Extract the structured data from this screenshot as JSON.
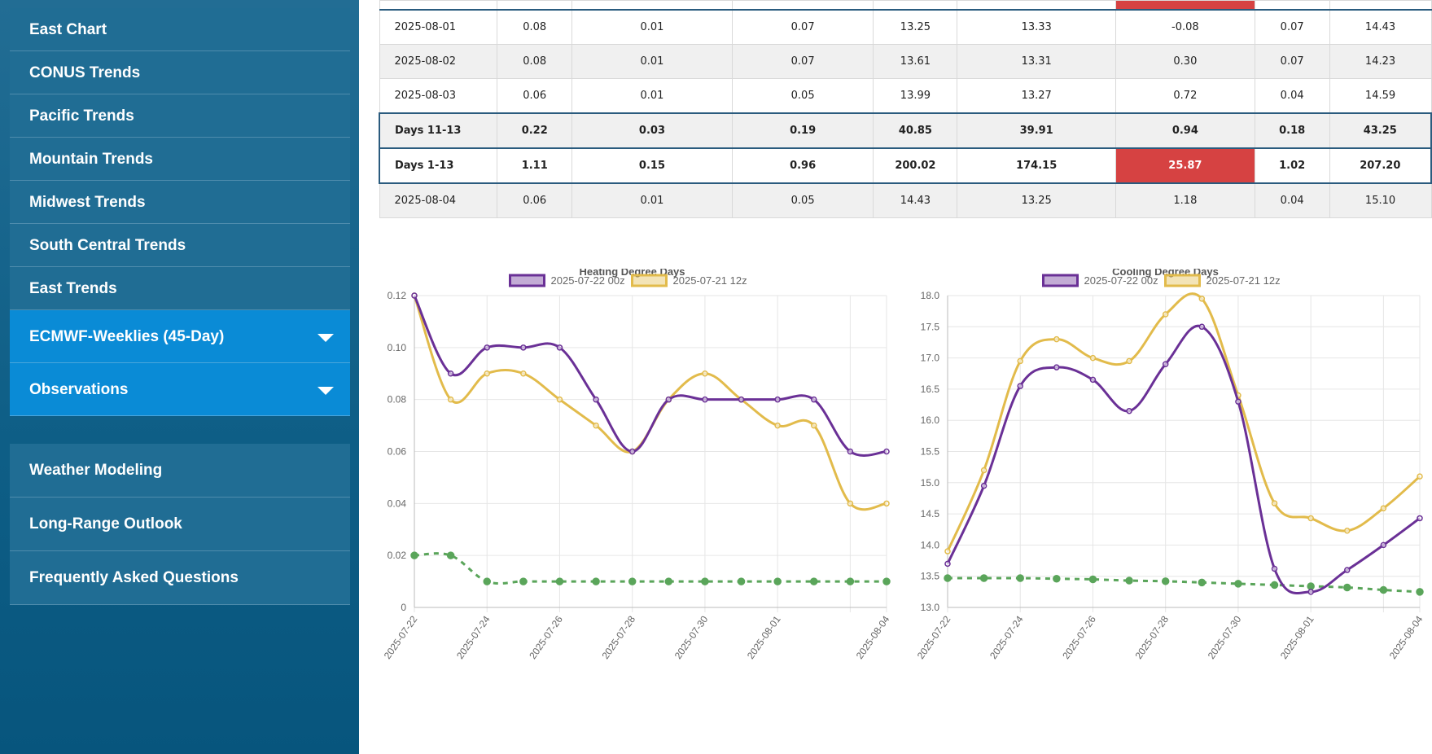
{
  "sidebar": {
    "items_top": [
      "East Chart",
      "CONUS Trends",
      "Pacific Trends",
      "Mountain Trends",
      "Midwest Trends",
      "South Central Trends",
      "East Trends"
    ],
    "items_active": [
      "ECMWF-Weeklies (45-Day)",
      "Observations"
    ],
    "items_bottom": [
      "Weather Modeling",
      "Long-Range Outlook",
      "Frequently Asked Questions"
    ]
  },
  "table": {
    "rows": [
      {
        "cells": [
          "2025-08-01",
          "0.08",
          "0.01",
          "0.07",
          "13.25",
          "13.33",
          "-0.08",
          "0.07",
          "14.43"
        ]
      },
      {
        "cells": [
          "2025-08-02",
          "0.08",
          "0.01",
          "0.07",
          "13.61",
          "13.31",
          "0.30",
          "0.07",
          "14.23"
        ]
      },
      {
        "cells": [
          "2025-08-03",
          "0.06",
          "0.01",
          "0.05",
          "13.99",
          "13.27",
          "0.72",
          "0.04",
          "14.59"
        ]
      },
      {
        "cells": [
          "Days 11-13",
          "0.22",
          "0.03",
          "0.19",
          "40.85",
          "39.91",
          "0.94",
          "0.18",
          "43.25"
        ]
      },
      {
        "cells": [
          "Days 1-13",
          "1.11",
          "0.15",
          "0.96",
          "200.02",
          "174.15",
          "25.87",
          "1.02",
          "207.20"
        ]
      },
      {
        "cells": [
          "2025-08-04",
          "0.06",
          "0.01",
          "0.05",
          "14.43",
          "13.25",
          "1.18",
          "0.04",
          "15.10"
        ]
      }
    ]
  },
  "colors": {
    "purple": "#6a3096",
    "gold": "#e2bb4b",
    "green": "#5aa55a",
    "red": "#d64242",
    "nav": "#206d94",
    "nav_active": "#0a8bd6"
  },
  "chart_data": [
    {
      "type": "line",
      "title": "Heating Degree Days",
      "x": [
        "2025-07-22",
        "2025-07-23",
        "2025-07-24",
        "2025-07-25",
        "2025-07-26",
        "2025-07-27",
        "2025-07-28",
        "2025-07-29",
        "2025-07-30",
        "2025-07-31",
        "2025-08-01",
        "2025-08-02",
        "2025-08-03",
        "2025-08-04"
      ],
      "x_tick_labels": [
        "2025-07-22",
        "2025-07-24",
        "2025-07-26",
        "2025-07-28",
        "2025-07-30",
        "2025-08-01",
        "2025-08-04"
      ],
      "ylim": [
        0,
        0.12
      ],
      "y_ticks": [
        0,
        0.02,
        0.04,
        0.06,
        0.08,
        0.1,
        0.12
      ],
      "y_tick_labels": [
        "0",
        "0.02",
        "0.04",
        "0.06",
        "0.08",
        "0.10",
        "0.12"
      ],
      "legend": "top",
      "series": [
        {
          "name": "2025-07-22 00z",
          "color": "#6a3096",
          "values": [
            0.12,
            0.09,
            0.1,
            0.1,
            0.1,
            0.08,
            0.06,
            0.08,
            0.08,
            0.08,
            0.08,
            0.08,
            0.06,
            0.06
          ]
        },
        {
          "name": "2025-07-21 12z",
          "color": "#e2bb4b",
          "values": [
            0.12,
            0.08,
            0.09,
            0.09,
            0.08,
            0.07,
            0.06,
            0.08,
            0.09,
            0.08,
            0.07,
            0.07,
            0.04,
            0.04
          ]
        },
        {
          "color": "#5aa55a",
          "dashed": true,
          "values": [
            0.02,
            0.02,
            0.01,
            0.01,
            0.01,
            0.01,
            0.01,
            0.01,
            0.01,
            0.01,
            0.01,
            0.01,
            0.01,
            0.01
          ]
        }
      ]
    },
    {
      "type": "line",
      "title": "Cooling Degree Days",
      "x": [
        "2025-07-22",
        "2025-07-23",
        "2025-07-24",
        "2025-07-25",
        "2025-07-26",
        "2025-07-27",
        "2025-07-28",
        "2025-07-29",
        "2025-07-30",
        "2025-07-31",
        "2025-08-01",
        "2025-08-02",
        "2025-08-03",
        "2025-08-04"
      ],
      "x_tick_labels": [
        "2025-07-22",
        "2025-07-24",
        "2025-07-26",
        "2025-07-28",
        "2025-07-30",
        "2025-08-01",
        "2025-08-04"
      ],
      "ylim": [
        13.0,
        18.0
      ],
      "y_ticks": [
        13.0,
        13.5,
        14.0,
        14.5,
        15.0,
        15.5,
        16.0,
        16.5,
        17.0,
        17.5,
        18.0
      ],
      "y_tick_labels": [
        "13.0",
        "13.5",
        "14.0",
        "14.5",
        "15.0",
        "15.5",
        "16.0",
        "16.5",
        "17.0",
        "17.5",
        "18.0"
      ],
      "legend": "top",
      "series": [
        {
          "name": "2025-07-22 00z",
          "color": "#6a3096",
          "values": [
            13.7,
            14.95,
            16.55,
            16.85,
            16.65,
            16.15,
            16.9,
            17.5,
            16.3,
            13.62,
            13.25,
            13.6,
            14.0,
            14.43
          ]
        },
        {
          "name": "2025-07-21 12z",
          "color": "#e2bb4b",
          "values": [
            13.9,
            15.2,
            16.95,
            17.3,
            17.0,
            16.95,
            17.7,
            17.95,
            16.4,
            14.67,
            14.43,
            14.23,
            14.59,
            15.1
          ]
        },
        {
          "color": "#5aa55a",
          "dashed": true,
          "values": [
            13.47,
            13.47,
            13.47,
            13.46,
            13.45,
            13.43,
            13.42,
            13.4,
            13.38,
            13.36,
            13.34,
            13.32,
            13.28,
            13.25
          ]
        }
      ]
    }
  ]
}
